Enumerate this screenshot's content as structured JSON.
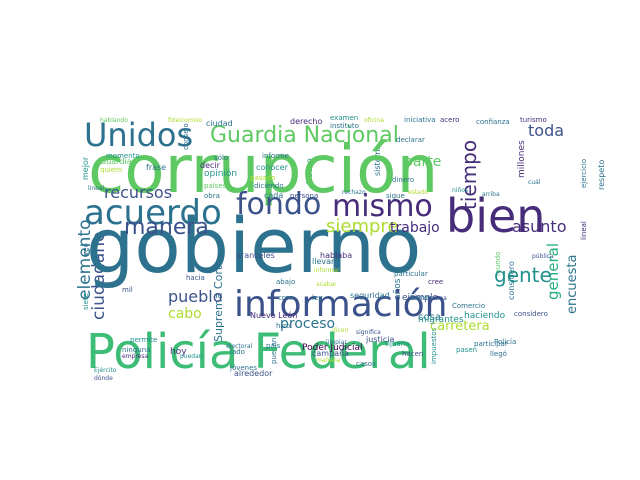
{
  "palette": {
    "dark_purple": "#472c7a",
    "navy": "#3b528b",
    "blue": "#2c728e",
    "teal": "#21918c",
    "green_teal": "#28ae80",
    "green": "#5ec962",
    "light_green": "#addc30",
    "yellow": "#d8e219",
    "deep_purple": "#440154"
  },
  "words": [
    "corrupción",
    "gobierno",
    "Policía Federal",
    "bien",
    "información",
    "acuerdo",
    "fondo",
    "mismo",
    "Unidos",
    "Guardia Nacional",
    "manera",
    "gente",
    "siempre",
    "recursos",
    "asunto",
    "toda",
    "tiempo",
    "parte",
    "pueblo",
    "trabajo",
    "elemento",
    "ciudadano",
    "cabo",
    "proceso",
    "carretera",
    "general",
    "encuesta",
    "Poder Judicial",
    "Suprema Corte",
    "Nuevo León",
    "aranceles",
    "campaña",
    "hoy",
    "cosa",
    "ejemplo",
    "migrantes",
    "haciendo",
    "justicia",
    "seguridad",
    "llevar",
    "opinión",
    "frase",
    "derecho",
    "examen",
    "iniciativa",
    "acero",
    "confianza",
    "turismo",
    "procedimiento",
    "hicieron",
    "Guardia",
    "quiero",
    "respeto",
    "millones",
    "momento",
    "hablando",
    "fideicomiso",
    "mejor",
    "ciudad",
    "sólo",
    "informe",
    "consejo",
    "conocer",
    "pasado",
    "diciendo",
    "países",
    "obra",
    "decir",
    "cada",
    "persona",
    "instituto",
    "oficina",
    "sistema",
    "dinero",
    "declarar",
    "bienes",
    "rechazo",
    "Tijuana",
    "hacen",
    "pasen",
    "llegó",
    "Policía",
    "participar",
    "considero",
    "mundo",
    "Federal",
    "pública",
    "permite",
    "ninguna",
    "empresa",
    "Ejército",
    "dónde",
    "alrededor",
    "jóvenes",
    "electoral",
    "lado",
    "puedan",
    "tarea",
    "mañana",
    "casos",
    "dicen",
    "país",
    "hizo",
    "creo",
    "ley",
    "abajo",
    "hablaba",
    "informar",
    "particular",
    "cree",
    "buena",
    "Comercio",
    "años",
    "significa",
    "sigue",
    "estado",
    "niños",
    "peso",
    "hacia",
    "lineal",
    "impuestos",
    "cuál",
    "ejercicio",
    "arriba",
    "actuar",
    "acabar",
    "mil",
    "veo",
    "siete",
    "Nuevo",
    "limpiar",
    "secretario",
    "derechos humanos",
    "mal",
    "único",
    "tema",
    "eso"
  ]
}
